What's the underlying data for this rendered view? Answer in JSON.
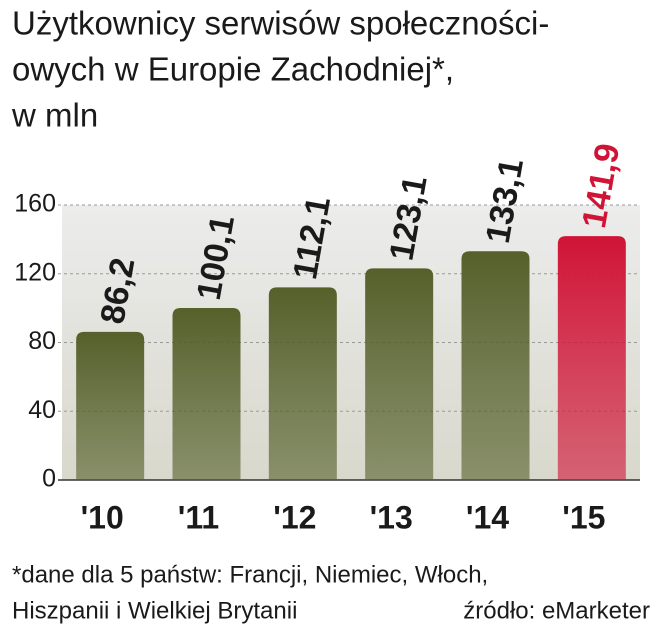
{
  "chart_data": {
    "type": "bar",
    "title": [
      "Użytkownicy serwisów społeczności-",
      "owych w Europie Zachodniej*,",
      "w mln"
    ],
    "categories": [
      "'10",
      "'11",
      "'12",
      "'13",
      "'14",
      "'15"
    ],
    "values": [
      86.2,
      100.1,
      112.1,
      123.1,
      133.1,
      141.9
    ],
    "value_labels": [
      "86,2",
      "100,1",
      "112,1",
      "123,1",
      "133,1",
      "141,9"
    ],
    "colors": [
      "#55602a",
      "#55602a",
      "#55602a",
      "#55602a",
      "#55602a",
      "#d01436"
    ],
    "ylim": [
      0,
      160
    ],
    "yticks": [
      0,
      40,
      80,
      120,
      160
    ],
    "grid": true,
    "footnote": [
      "*dane dla 5 państw: Francji, Niemiec, Włoch,",
      "Hiszpanii i Wielkiej Brytanii"
    ],
    "source": "źródło: eMarketer"
  }
}
